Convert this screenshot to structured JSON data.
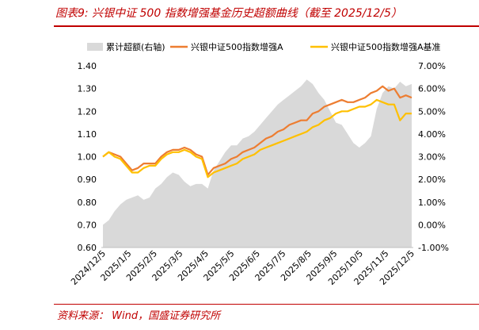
{
  "figure": {
    "title": "图表9:  兴银中证 500 指数增强基金历史超额曲线（截至 2025/12/5）",
    "source": "资料来源：  Wind，国盛证券研究所"
  },
  "chart_data": {
    "type": "line",
    "x": [
      "2024/12/5",
      "2024/12/12",
      "2024/12/19",
      "2024/12/26",
      "2025/1/2",
      "2025/1/9",
      "2025/1/16",
      "2025/1/23",
      "2025/1/30",
      "2025/2/6",
      "2025/2/13",
      "2025/2/20",
      "2025/2/27",
      "2025/3/6",
      "2025/3/13",
      "2025/3/20",
      "2025/3/27",
      "2025/4/3",
      "2025/4/7",
      "2025/4/10",
      "2025/4/17",
      "2025/4/24",
      "2025/5/1",
      "2025/5/8",
      "2025/5/15",
      "2025/5/22",
      "2025/5/29",
      "2025/6/5",
      "2025/6/12",
      "2025/6/19",
      "2025/6/26",
      "2025/7/3",
      "2025/7/10",
      "2025/7/17",
      "2025/7/24",
      "2025/7/31",
      "2025/8/7",
      "2025/8/14",
      "2025/8/21",
      "2025/8/28",
      "2025/9/4",
      "2025/9/11",
      "2025/9/18",
      "2025/9/25",
      "2025/10/2",
      "2025/10/9",
      "2025/10/16",
      "2025/10/23",
      "2025/10/30",
      "2025/11/6",
      "2025/11/13",
      "2025/11/20",
      "2025/11/27",
      "2025/12/5"
    ],
    "x_ticks": [
      "2024/12/5",
      "2025/1/5",
      "2025/2/5",
      "2025/3/5",
      "2025/4/5",
      "2025/5/5",
      "2025/6/5",
      "2025/7/5",
      "2025/8/5",
      "2025/9/5",
      "2025/10/5",
      "2025/11/5",
      "2025/12/5"
    ],
    "y_left": {
      "ticks": [
        "0.60",
        "0.70",
        "0.80",
        "0.90",
        "1.00",
        "1.10",
        "1.20",
        "1.30",
        "1.40"
      ],
      "range": [
        0.6,
        1.4
      ]
    },
    "y_right": {
      "ticks": [
        "-1.00%",
        "0.00%",
        "1.00%",
        "2.00%",
        "3.00%",
        "4.00%",
        "5.00%",
        "6.00%",
        "7.00%"
      ],
      "range": [
        -1.0,
        7.0
      ]
    },
    "legend_position": "top",
    "series": [
      {
        "name": "累计超额(右轴)",
        "kind": "area",
        "axis": "right",
        "color": "#d9d9d9",
        "values": [
          0.0,
          0.2,
          0.6,
          0.9,
          1.1,
          1.2,
          1.3,
          1.1,
          1.2,
          1.6,
          1.8,
          2.1,
          2.3,
          2.2,
          1.9,
          1.7,
          1.8,
          1.8,
          1.6,
          2.4,
          2.8,
          3.2,
          3.5,
          3.5,
          3.8,
          3.9,
          4.1,
          4.4,
          4.7,
          5.0,
          5.3,
          5.5,
          5.7,
          5.9,
          6.1,
          6.4,
          6.2,
          5.8,
          5.5,
          5.0,
          4.5,
          4.4,
          4.0,
          3.6,
          3.4,
          3.6,
          3.9,
          5.1,
          5.8,
          6.1,
          6.0,
          6.3,
          6.1,
          6.2
        ]
      },
      {
        "name": "兴银中证500指数增强A",
        "kind": "line",
        "axis": "left",
        "color": "#ed7d31",
        "values": [
          1.0,
          1.02,
          1.01,
          1.0,
          0.97,
          0.94,
          0.95,
          0.97,
          0.97,
          0.97,
          1.0,
          1.02,
          1.03,
          1.03,
          1.04,
          1.03,
          1.01,
          1.0,
          0.92,
          0.95,
          0.96,
          0.97,
          0.99,
          1.0,
          1.02,
          1.03,
          1.04,
          1.06,
          1.08,
          1.09,
          1.11,
          1.12,
          1.14,
          1.15,
          1.16,
          1.16,
          1.19,
          1.2,
          1.22,
          1.23,
          1.24,
          1.25,
          1.24,
          1.24,
          1.25,
          1.26,
          1.28,
          1.29,
          1.31,
          1.29,
          1.3,
          1.26,
          1.27,
          1.26
        ]
      },
      {
        "name": "兴银中证500指数增强A基准",
        "kind": "line",
        "axis": "left",
        "color": "#ffc000",
        "values": [
          1.0,
          1.02,
          1.0,
          0.99,
          0.96,
          0.93,
          0.93,
          0.95,
          0.96,
          0.96,
          0.99,
          1.01,
          1.02,
          1.02,
          1.03,
          1.02,
          1.0,
          0.99,
          0.91,
          0.93,
          0.94,
          0.95,
          0.96,
          0.97,
          0.99,
          1.0,
          1.01,
          1.03,
          1.04,
          1.05,
          1.06,
          1.07,
          1.08,
          1.09,
          1.1,
          1.11,
          1.13,
          1.14,
          1.16,
          1.17,
          1.19,
          1.2,
          1.2,
          1.21,
          1.22,
          1.22,
          1.23,
          1.25,
          1.24,
          1.23,
          1.23,
          1.16,
          1.19,
          1.19
        ]
      }
    ]
  }
}
